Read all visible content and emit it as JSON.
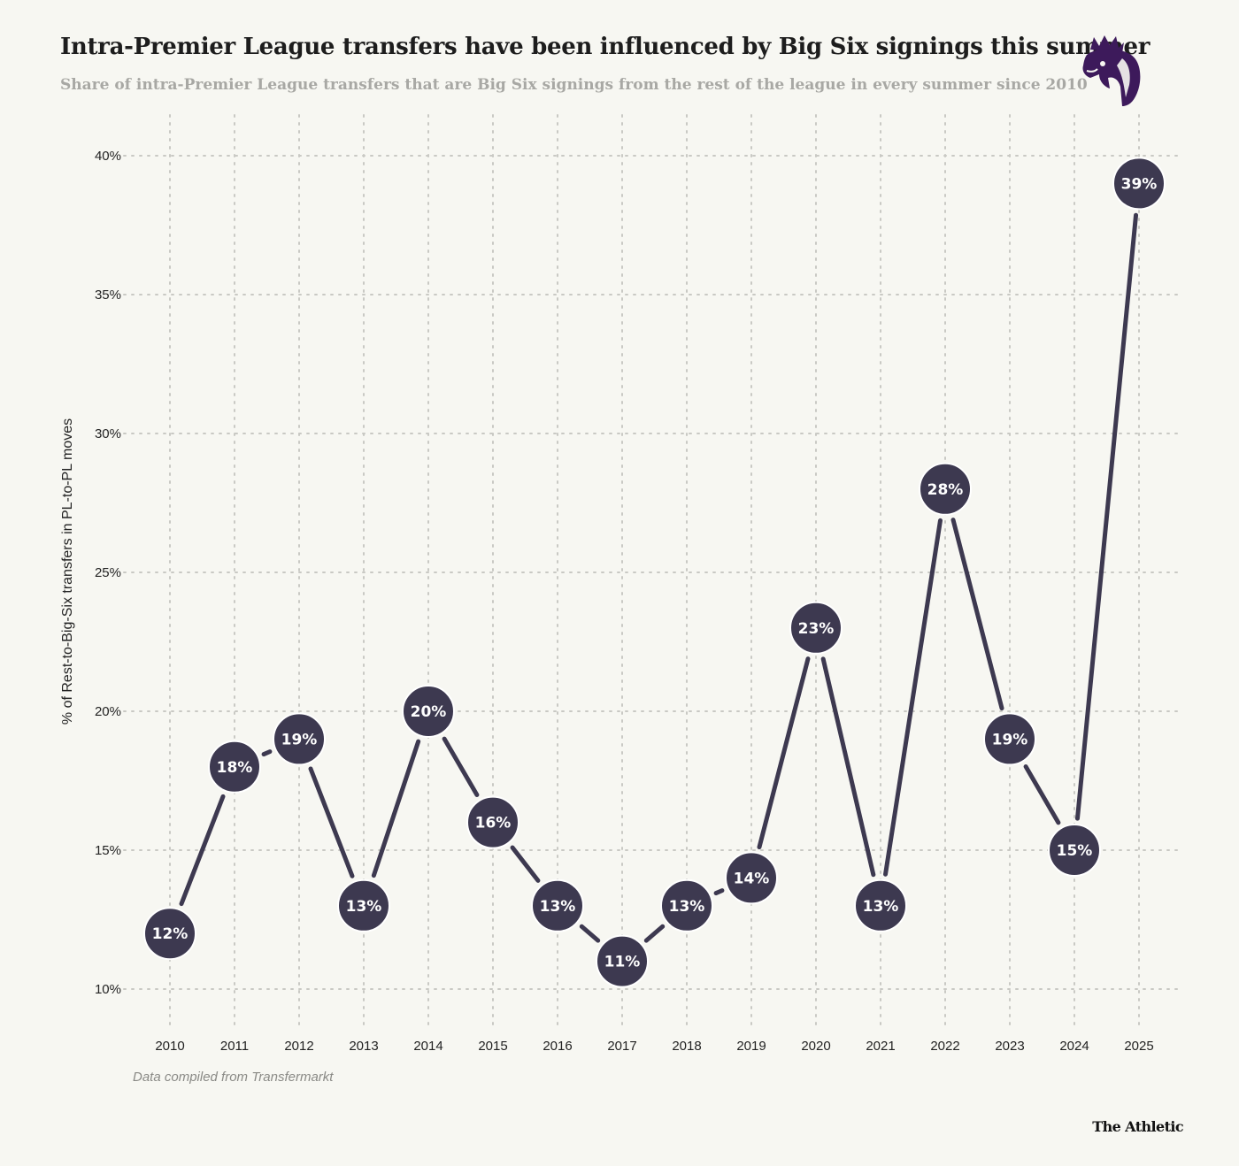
{
  "header": {
    "title": "Intra-Premier League transfers have been influenced by Big Six signings this summer",
    "subtitle": "Share of intra-Premier League transfers that are Big Six signings from the rest of the league in every summer since 2010"
  },
  "footer": {
    "source": "Data compiled from Transfermarkt",
    "brand": "The Athletic"
  },
  "logo": {
    "icon": "premier-league-lion-icon",
    "color": "#3d1a5b"
  },
  "colors": {
    "background": "#f7f7f2",
    "line": "#3d3950",
    "marker": "#3d3950",
    "marker_outline": "#ffffff",
    "grid": "#c9c9c4"
  },
  "chart_data": {
    "type": "line",
    "ylabel": "% of Rest-to-Big-Six transfers in PL-to-PL moves",
    "xlabel": "",
    "x": [
      "2010",
      "2011",
      "2012",
      "2013",
      "2014",
      "2015",
      "2016",
      "2017",
      "2018",
      "2019",
      "2020",
      "2021",
      "2022",
      "2023",
      "2024",
      "2025"
    ],
    "values": [
      12,
      18,
      19,
      13,
      20,
      16,
      13,
      11,
      13,
      14,
      23,
      13,
      28,
      19,
      15,
      39
    ],
    "point_labels": [
      "12%",
      "18%",
      "19%",
      "13%",
      "20%",
      "16%",
      "13%",
      "11%",
      "13%",
      "14%",
      "23%",
      "13%",
      "28%",
      "19%",
      "15%",
      "39%"
    ],
    "yticks": [
      10,
      15,
      20,
      25,
      30,
      35,
      40
    ],
    "ytick_labels": [
      "10%",
      "15%",
      "20%",
      "25%",
      "30%",
      "35%",
      "40%"
    ],
    "ylim": [
      10,
      40
    ],
    "grid": "dotted, both axes",
    "legend": "none"
  }
}
